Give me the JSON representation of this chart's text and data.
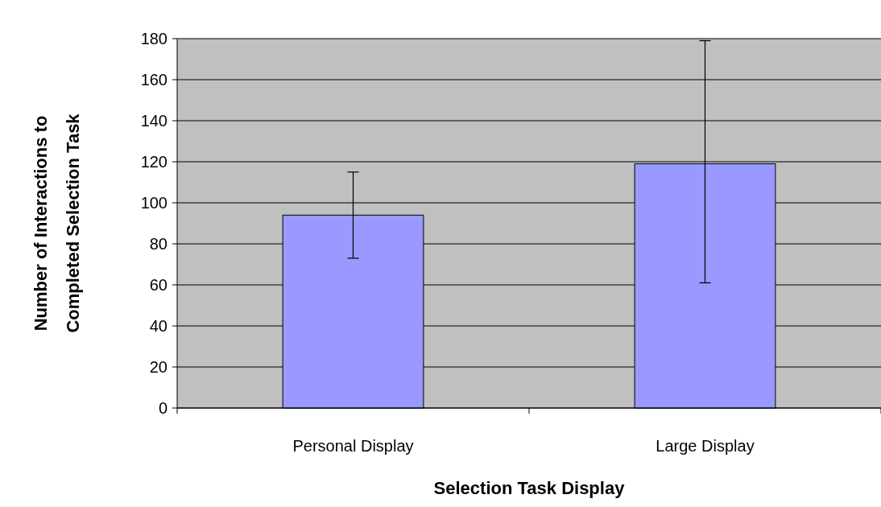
{
  "chart_data": {
    "type": "bar",
    "xlabel": "Selection Task Display",
    "ylabel": "Number of Interactions to Completed Selection Task",
    "categories": [
      "Personal Display",
      "Large Display"
    ],
    "series": [
      {
        "color": "#9999ff",
        "values": [
          94,
          119
        ],
        "errors": [
          [
            73,
            115
          ],
          [
            61,
            179
          ]
        ]
      }
    ],
    "ylim": [
      0,
      180
    ],
    "yticks": [
      0,
      20,
      40,
      60,
      80,
      100,
      120,
      140,
      160,
      180
    ],
    "grid": "y"
  }
}
